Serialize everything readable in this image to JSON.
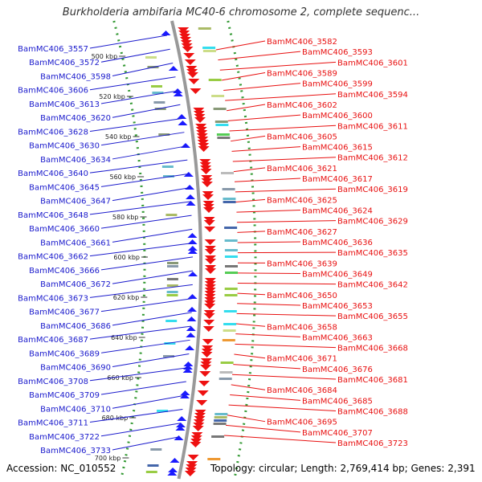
{
  "title": "Burkholderia ambifaria MC40-6 chromosome 2, complete sequenc...",
  "footer": {
    "accession": "Accession: NC_010552",
    "topology": "Topology: circular; Length: 2,769,414 bp; Genes: 2,391"
  },
  "colors": {
    "left_label": "#1a1acc",
    "right_label": "#e81010",
    "forward_arrow": "#1a1aff",
    "reverse_arrow": "#ee1111",
    "backbone": "#999999",
    "ruler_dots": "#339933"
  },
  "ticks": [
    "500 kbp",
    "520 kbp",
    "540 kbp",
    "560 kbp",
    "580 kbp",
    "600 kbp",
    "620 kbp",
    "640 kbp",
    "660 kbp",
    "680 kbp",
    "700 kbp"
  ],
  "left_labels": [
    "BamMC406_3557",
    "BamMC406_3572",
    "BamMC406_3598",
    "BamMC406_3606",
    "BamMC406_3613",
    "BamMC406_3620",
    "BamMC406_3628",
    "BamMC406_3630",
    "BamMC406_3634",
    "BamMC406_3640",
    "BamMC406_3645",
    "BamMC406_3647",
    "BamMC406_3648",
    "BamMC406_3660",
    "BamMC406_3661",
    "BamMC406_3662",
    "BamMC406_3666",
    "BamMC406_3672",
    "BamMC406_3673",
    "BamMC406_3677",
    "BamMC406_3686",
    "BamMC406_3687",
    "BamMC406_3689",
    "BamMC406_3690",
    "BamMC406_3708",
    "BamMC406_3709",
    "BamMC406_3710",
    "BamMC406_3711",
    "BamMC406_3722",
    "BamMC406_3733"
  ],
  "right_labels": [
    "BamMC406_3582",
    "BamMC406_3593",
    "BamMC406_3601",
    "BamMC406_3589",
    "BamMC406_3599",
    "BamMC406_3594",
    "BamMC406_3602",
    "BamMC406_3600",
    "BamMC406_3611",
    "BamMC406_3605",
    "BamMC406_3615",
    "BamMC406_3612",
    "BamMC406_3621",
    "BamMC406_3617",
    "BamMC406_3619",
    "BamMC406_3625",
    "BamMC406_3624",
    "BamMC406_3629",
    "BamMC406_3627",
    "BamMC406_3636",
    "BamMC406_3635",
    "BamMC406_3639",
    "BamMC406_3649",
    "BamMC406_3642",
    "BamMC406_3650",
    "BamMC406_3653",
    "BamMC406_3655",
    "BamMC406_3658",
    "BamMC406_3663",
    "BamMC406_3668",
    "BamMC406_3671",
    "BamMC406_3676",
    "BamMC406_3681",
    "BamMC406_3684",
    "BamMC406_3685",
    "BamMC406_3688",
    "BamMC406_3695",
    "BamMC406_3707",
    "BamMC406_3723"
  ]
}
